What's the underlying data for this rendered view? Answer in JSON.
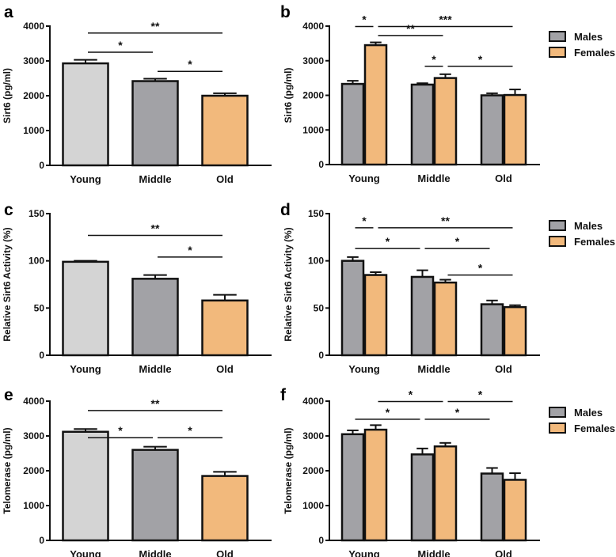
{
  "colors": {
    "young": "#d4d4d4",
    "middle": "#a2a2a6",
    "old": "#f2b97c",
    "males": "#a2a2a6",
    "females": "#f2b97c"
  },
  "chart_data": [
    {
      "panel": "a",
      "type": "bar",
      "ylabel": "Sirt6 (pg/ml)",
      "ylim": [
        0,
        4000
      ],
      "yticks": [
        "0",
        "1000",
        "2000",
        "3000",
        "4000"
      ],
      "categories": [
        "Young",
        "Middle",
        "Old"
      ],
      "series": [
        {
          "name": "",
          "values": [
            2930,
            2420,
            2000
          ],
          "errors": [
            100,
            70,
            70
          ]
        }
      ],
      "significance": [
        {
          "from": [
            0,
            null
          ],
          "to": [
            2,
            null
          ],
          "y": 3800,
          "label": "**"
        },
        {
          "from": [
            0,
            null
          ],
          "to": [
            1,
            null
          ],
          "y": 3250,
          "label": "*"
        },
        {
          "from": [
            1,
            null
          ],
          "to": [
            2,
            null
          ],
          "y": 2700,
          "label": "*"
        }
      ]
    },
    {
      "panel": "b",
      "type": "bar",
      "ylabel": "Sirt6 (pg/ml)",
      "ylim": [
        0,
        4000
      ],
      "yticks": [
        "0",
        "1000",
        "2000",
        "3000",
        "4000"
      ],
      "categories": [
        "Young",
        "Middle",
        "Old"
      ],
      "legend": [
        "Males",
        "Females"
      ],
      "legend_position": "right",
      "series": [
        {
          "name": "Males",
          "values": [
            2330,
            2310,
            2000
          ],
          "errors": [
            90,
            40,
            60
          ]
        },
        {
          "name": "Females",
          "values": [
            3450,
            2500,
            2010
          ],
          "errors": [
            80,
            110,
            160
          ]
        }
      ],
      "significance": [
        {
          "from": [
            0,
            0
          ],
          "to": [
            0,
            1
          ],
          "y": 3990,
          "label": "*"
        },
        {
          "from": [
            0,
            1
          ],
          "to": [
            2,
            1
          ],
          "y": 3990,
          "label": "***"
        },
        {
          "from": [
            0,
            1
          ],
          "to": [
            1,
            1
          ],
          "y": 3730,
          "label": "**"
        },
        {
          "from": [
            1,
            0
          ],
          "to": [
            1,
            1
          ],
          "y": 2840,
          "label": "*"
        },
        {
          "from": [
            1,
            1
          ],
          "to": [
            2,
            1
          ],
          "y": 2840,
          "label": "*"
        }
      ]
    },
    {
      "panel": "c",
      "type": "bar",
      "ylabel": "Relative Sirt6 Activity (%)",
      "ylim": [
        0,
        150
      ],
      "yticks": [
        "0",
        "50",
        "100",
        "150"
      ],
      "categories": [
        "Young",
        "Middle",
        "Old"
      ],
      "series": [
        {
          "name": "",
          "values": [
            99,
            81,
            58
          ],
          "errors": [
            1,
            4,
            6
          ]
        }
      ],
      "significance": [
        {
          "from": [
            0,
            null
          ],
          "to": [
            2,
            null
          ],
          "y": 127,
          "label": "**"
        },
        {
          "from": [
            1,
            null
          ],
          "to": [
            2,
            null
          ],
          "y": 104,
          "label": "*"
        }
      ]
    },
    {
      "panel": "d",
      "type": "bar",
      "ylabel": "Relative Sirt6 Activity (%)",
      "ylim": [
        0,
        150
      ],
      "yticks": [
        "0",
        "50",
        "100",
        "150"
      ],
      "categories": [
        "Young",
        "Middle",
        "Old"
      ],
      "legend": [
        "Males",
        "Females"
      ],
      "legend_position": "right",
      "series": [
        {
          "name": "Males",
          "values": [
            100,
            83,
            54
          ],
          "errors": [
            4,
            7,
            4
          ]
        },
        {
          "name": "Females",
          "values": [
            85,
            77,
            51
          ],
          "errors": [
            3,
            3,
            2
          ]
        }
      ],
      "significance": [
        {
          "from": [
            0,
            0
          ],
          "to": [
            0,
            1
          ],
          "y": 135,
          "label": "*"
        },
        {
          "from": [
            0,
            1
          ],
          "to": [
            2,
            1
          ],
          "y": 135,
          "label": "**"
        },
        {
          "from": [
            0,
            0
          ],
          "to": [
            1,
            0
          ],
          "y": 113,
          "label": "*"
        },
        {
          "from": [
            1,
            0
          ],
          "to": [
            2,
            0
          ],
          "y": 113,
          "label": "*"
        },
        {
          "from": [
            1,
            1
          ],
          "to": [
            2,
            1
          ],
          "y": 85,
          "label": "*"
        }
      ]
    },
    {
      "panel": "e",
      "type": "bar",
      "ylabel": "Telomerase (pg/ml)",
      "ylim": [
        0,
        4000
      ],
      "yticks": [
        "0",
        "1000",
        "2000",
        "3000",
        "4000"
      ],
      "categories": [
        "Young",
        "Middle",
        "Old"
      ],
      "series": [
        {
          "name": "",
          "values": [
            3120,
            2600,
            1850
          ],
          "errors": [
            80,
            90,
            120
          ]
        }
      ],
      "significance": [
        {
          "from": [
            0,
            null
          ],
          "to": [
            2,
            null
          ],
          "y": 3730,
          "label": "**"
        },
        {
          "from": [
            0,
            null
          ],
          "to": [
            1,
            null
          ],
          "y": 2950,
          "label": "*"
        },
        {
          "from": [
            1,
            null
          ],
          "to": [
            2,
            null
          ],
          "y": 2950,
          "label": "*"
        }
      ]
    },
    {
      "panel": "f",
      "type": "bar",
      "ylabel": "Telomerase (pg/ml)",
      "ylim": [
        0,
        4000
      ],
      "yticks": [
        "0",
        "1000",
        "2000",
        "3000",
        "4000"
      ],
      "categories": [
        "Young",
        "Middle",
        "Old"
      ],
      "legend": [
        "Males",
        "Females"
      ],
      "legend_position": "right",
      "series": [
        {
          "name": "Males",
          "values": [
            3050,
            2470,
            1920
          ],
          "errors": [
            110,
            170,
            160
          ]
        },
        {
          "name": "Females",
          "values": [
            3180,
            2700,
            1740
          ],
          "errors": [
            130,
            100,
            190
          ]
        }
      ],
      "significance": [
        {
          "from": [
            0,
            1
          ],
          "to": [
            1,
            1
          ],
          "y": 3990,
          "label": "*"
        },
        {
          "from": [
            1,
            1
          ],
          "to": [
            2,
            1
          ],
          "y": 3990,
          "label": "*"
        },
        {
          "from": [
            0,
            0
          ],
          "to": [
            1,
            0
          ],
          "y": 3480,
          "label": "*"
        },
        {
          "from": [
            1,
            0
          ],
          "to": [
            2,
            0
          ],
          "y": 3480,
          "label": "*"
        }
      ]
    }
  ]
}
